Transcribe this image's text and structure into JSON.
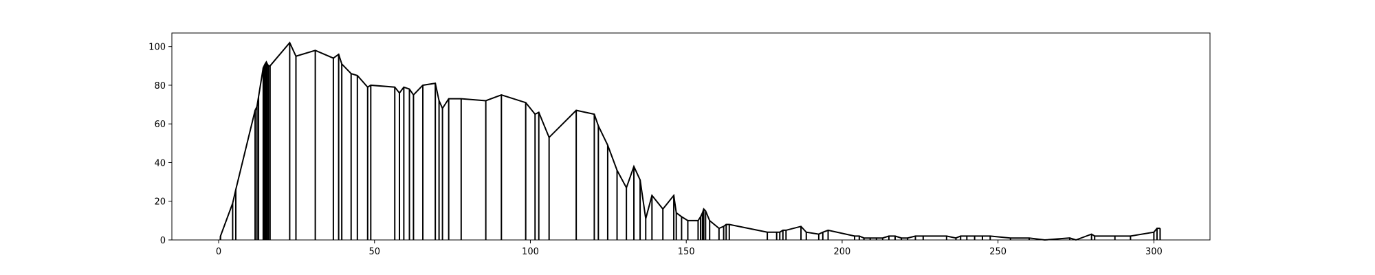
{
  "chart_data": {
    "type": "line",
    "title": "",
    "xlabel": "",
    "ylabel": "",
    "xlim": [
      -15,
      318
    ],
    "ylim": [
      0,
      107
    ],
    "grid": false,
    "legend": "none",
    "line_color": "#000000",
    "x_ticks": [
      0,
      50,
      100,
      150,
      200,
      250,
      300
    ],
    "y_ticks": [
      0,
      20,
      40,
      60,
      80,
      100
    ],
    "x_tick_labels": [
      "0",
      "50",
      "100",
      "150",
      "200",
      "250",
      "300"
    ],
    "y_tick_labels": [
      "0",
      "20",
      "40",
      "60",
      "80",
      "100"
    ],
    "points": [
      [
        0.5,
        0
      ],
      [
        0.6,
        2
      ],
      [
        4.5,
        19
      ],
      [
        5.5,
        26
      ],
      [
        11.7,
        67
      ],
      [
        12.3,
        69
      ],
      [
        12.8,
        74
      ],
      [
        14.3,
        89
      ],
      [
        14.6,
        90
      ],
      [
        14.9,
        91
      ],
      [
        15.3,
        92
      ],
      [
        15.6,
        91
      ],
      [
        16.0,
        90
      ],
      [
        16.5,
        90
      ],
      [
        22.8,
        102
      ],
      [
        24.8,
        95
      ],
      [
        31.0,
        98
      ],
      [
        36.8,
        94
      ],
      [
        38.5,
        96
      ],
      [
        39.5,
        91
      ],
      [
        42.5,
        86
      ],
      [
        44.5,
        85
      ],
      [
        47.8,
        79
      ],
      [
        48.8,
        80
      ],
      [
        56.5,
        79
      ],
      [
        58.0,
        76
      ],
      [
        59.4,
        79
      ],
      [
        61.2,
        78
      ],
      [
        62.5,
        75
      ],
      [
        65.5,
        80
      ],
      [
        69.5,
        81
      ],
      [
        70.7,
        72
      ],
      [
        71.8,
        68
      ],
      [
        73.8,
        73
      ],
      [
        77.8,
        73
      ],
      [
        85.7,
        72
      ],
      [
        90.7,
        75
      ],
      [
        98.5,
        71
      ],
      [
        101.5,
        65
      ],
      [
        102.7,
        66
      ],
      [
        106.0,
        53
      ],
      [
        114.7,
        67
      ],
      [
        120.5,
        65
      ],
      [
        121.8,
        59
      ],
      [
        124.8,
        49
      ],
      [
        127.8,
        36
      ],
      [
        130.8,
        27
      ],
      [
        133.2,
        38
      ],
      [
        135.2,
        31
      ],
      [
        137.0,
        11
      ],
      [
        139.0,
        23
      ],
      [
        142.5,
        16
      ],
      [
        146.0,
        23
      ],
      [
        146.8,
        14
      ],
      [
        148.5,
        12
      ],
      [
        150.5,
        10
      ],
      [
        153.8,
        10
      ],
      [
        154.6,
        12
      ],
      [
        155.2,
        14
      ],
      [
        155.6,
        16
      ],
      [
        156.2,
        15
      ],
      [
        157.5,
        10
      ],
      [
        160.5,
        6
      ],
      [
        162.0,
        7
      ],
      [
        162.8,
        8
      ],
      [
        163.8,
        8
      ],
      [
        176.0,
        4
      ],
      [
        179.0,
        4
      ],
      [
        180.0,
        4
      ],
      [
        181.0,
        5
      ],
      [
        182.0,
        5
      ],
      [
        186.8,
        7
      ],
      [
        188.5,
        4
      ],
      [
        192.5,
        3
      ],
      [
        193.8,
        4
      ],
      [
        195.5,
        5
      ],
      [
        204.0,
        2
      ],
      [
        205.5,
        2
      ],
      [
        207.0,
        1
      ],
      [
        209.0,
        1
      ],
      [
        211.0,
        1
      ],
      [
        213.0,
        1
      ],
      [
        215.0,
        2
      ],
      [
        217.0,
        2
      ],
      [
        219.0,
        1
      ],
      [
        221.0,
        1
      ],
      [
        223.5,
        2
      ],
      [
        226.0,
        2
      ],
      [
        233.5,
        2
      ],
      [
        236.5,
        1
      ],
      [
        238.0,
        2
      ],
      [
        240.0,
        2
      ],
      [
        242.5,
        2
      ],
      [
        245.0,
        2
      ],
      [
        247.5,
        2
      ],
      [
        254.0,
        1
      ],
      [
        260.0,
        1
      ],
      [
        265.0,
        0
      ],
      [
        273.0,
        1
      ],
      [
        275.0,
        0
      ],
      [
        280.0,
        3
      ],
      [
        281.0,
        2
      ],
      [
        287.5,
        2
      ],
      [
        292.5,
        2
      ],
      [
        300.0,
        4
      ],
      [
        301.0,
        6
      ],
      [
        302.0,
        6
      ]
    ]
  }
}
